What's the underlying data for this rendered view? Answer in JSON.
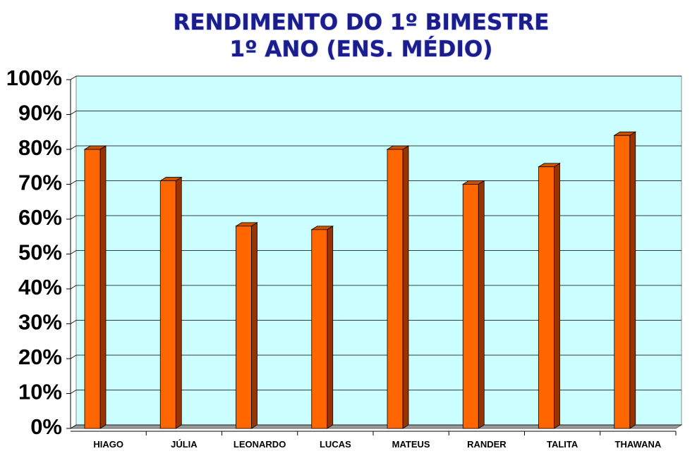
{
  "chart_data": {
    "type": "bar3d",
    "title": [
      "RENDIMENTO  DO 1º BIMESTRE",
      "1º ANO (ENS.  MÉDIO)"
    ],
    "categories": [
      "HIAGO",
      "JÚLIA",
      "LEONARDO",
      "LUCAS",
      "MATEUS",
      "RANDER",
      "TALITA",
      "THAWANA"
    ],
    "values": [
      80,
      71,
      58,
      57,
      80,
      70,
      75,
      84
    ],
    "color": "#ff6600",
    "ylim": [
      0,
      100
    ],
    "yticks": [
      {
        "value": 0,
        "label": "0%"
      },
      {
        "value": 10,
        "label": "10%"
      },
      {
        "value": 20,
        "label": "20%"
      },
      {
        "value": 30,
        "label": "30%"
      },
      {
        "value": 40,
        "label": "40%"
      },
      {
        "value": 50,
        "label": "50%"
      },
      {
        "value": 60,
        "label": "60%"
      },
      {
        "value": 70,
        "label": "70%"
      },
      {
        "value": 80,
        "label": "80%"
      },
      {
        "value": 90,
        "label": "90%"
      },
      {
        "value": 100,
        "label": "100%"
      }
    ],
    "grid": true
  }
}
